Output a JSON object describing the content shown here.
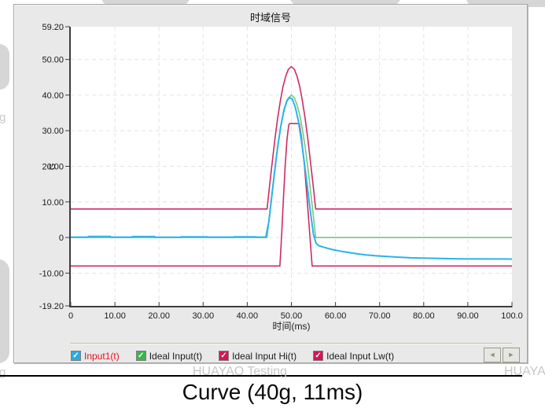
{
  "panel": {
    "title": "时域信号"
  },
  "caption": "Curve (40g, 11ms)",
  "watermarks": {
    "center": "HUAYAO Testing",
    "right": "HUAYAO",
    "left_letter_mid": "g",
    "left_letter_bottom": "g"
  },
  "legend": {
    "check_glyph": "✓",
    "scroll_left_icon": "◄",
    "scroll_right_icon": "►",
    "items": [
      {
        "label": "Input1(t)",
        "box_color": "#29abe2",
        "label_color": "#e8101c"
      },
      {
        "label": "Ideal Input(t)",
        "box_color": "#3bb54a",
        "label_color": "#1a1a1a"
      },
      {
        "label": "Ideal Input Hi(t)",
        "box_color": "#d4145a",
        "label_color": "#1a1a1a"
      },
      {
        "label": "Ideal Input Lw(t)",
        "box_color": "#d4145a",
        "label_color": "#1a1a1a"
      }
    ]
  },
  "chart_data": {
    "type": "line",
    "title": "时域信号",
    "xlabel": "时间(ms)",
    "ylabel": "G",
    "xlim": [
      0,
      100
    ],
    "ylim": [
      -19.2,
      59.2
    ],
    "grid": true,
    "grid_x": [
      10,
      20,
      30,
      40,
      50,
      60,
      70,
      80,
      90
    ],
    "grid_y": [
      -10,
      0,
      10,
      20,
      30,
      40,
      50
    ],
    "x_ticks": [
      {
        "v": 0,
        "label": "0"
      },
      {
        "v": 10,
        "label": "10.00"
      },
      {
        "v": 20,
        "label": "20.00"
      },
      {
        "v": 30,
        "label": "30.00"
      },
      {
        "v": 40,
        "label": "40.00"
      },
      {
        "v": 50,
        "label": "50.00"
      },
      {
        "v": 60,
        "label": "60.00"
      },
      {
        "v": 70,
        "label": "70.00"
      },
      {
        "v": 80,
        "label": "80.00"
      },
      {
        "v": 90,
        "label": "90.00"
      },
      {
        "v": 100,
        "label": "100.0"
      }
    ],
    "y_ticks": [
      {
        "v": 59.2,
        "label": "59.20"
      },
      {
        "v": 50,
        "label": "50.00"
      },
      {
        "v": 40,
        "label": "40.00"
      },
      {
        "v": 30,
        "label": "30.00"
      },
      {
        "v": 20,
        "label": "20.00"
      },
      {
        "v": 10,
        "label": "10.00"
      },
      {
        "v": 0,
        "label": "0"
      },
      {
        "v": -10,
        "label": "-10.00"
      },
      {
        "v": -19.2,
        "label": "-19.20"
      }
    ],
    "draw_order": [
      2,
      3,
      1,
      0
    ],
    "series": [
      {
        "name": "Input1(t)",
        "color": "#2ab4e8",
        "width": 2,
        "points": [
          [
            0,
            0.1
          ],
          [
            4,
            0.1
          ],
          [
            4,
            0.3
          ],
          [
            9,
            0.3
          ],
          [
            9,
            0.1
          ],
          [
            14,
            0.1
          ],
          [
            14,
            0.25
          ],
          [
            19,
            0.25
          ],
          [
            19,
            0.05
          ],
          [
            25,
            0.05
          ],
          [
            25,
            0.2
          ],
          [
            31,
            0.2
          ],
          [
            31,
            0.1
          ],
          [
            37,
            0.1
          ],
          [
            37,
            0.2
          ],
          [
            42,
            0.2
          ],
          [
            42,
            0.1
          ],
          [
            44.2,
            0.1
          ],
          [
            44.9,
            4.5
          ],
          [
            45.5,
            11
          ],
          [
            46.2,
            18.5
          ],
          [
            46.9,
            25.5
          ],
          [
            47.6,
            31.2
          ],
          [
            48.3,
            35.8
          ],
          [
            49,
            38.5
          ],
          [
            49.6,
            39.3
          ],
          [
            50.2,
            38.9
          ],
          [
            50.9,
            36.6
          ],
          [
            51.6,
            32.6
          ],
          [
            52.3,
            27
          ],
          [
            53,
            20.4
          ],
          [
            53.7,
            13.4
          ],
          [
            54.4,
            6.4
          ],
          [
            55,
            0.8
          ],
          [
            55.6,
            -1.6
          ],
          [
            56.2,
            -2.3
          ],
          [
            57.5,
            -2.8
          ],
          [
            59,
            -3.3
          ],
          [
            61,
            -3.8
          ],
          [
            63,
            -4.2
          ],
          [
            65,
            -4.6
          ],
          [
            67,
            -4.9
          ],
          [
            69,
            -5.1
          ],
          [
            71.5,
            -5.3
          ],
          [
            74,
            -5.5
          ],
          [
            77,
            -5.7
          ],
          [
            80,
            -5.8
          ],
          [
            84,
            -5.9
          ],
          [
            88,
            -6
          ],
          [
            100,
            -6.05
          ]
        ]
      },
      {
        "name": "Ideal Input(t)",
        "color": "#72c888",
        "width": 1.6,
        "points": [
          [
            0,
            0
          ],
          [
            44.5,
            0
          ],
          [
            45.1,
            7
          ],
          [
            45.7,
            13.6
          ],
          [
            46.3,
            19.9
          ],
          [
            46.9,
            25.6
          ],
          [
            47.5,
            30.4
          ],
          [
            48.1,
            34.3
          ],
          [
            48.7,
            37.2
          ],
          [
            49.3,
            39.2
          ],
          [
            50,
            40
          ],
          [
            50.7,
            39.2
          ],
          [
            51.3,
            37.2
          ],
          [
            51.9,
            34.3
          ],
          [
            52.5,
            30.4
          ],
          [
            53.1,
            25.6
          ],
          [
            53.7,
            19.9
          ],
          [
            54.3,
            13.6
          ],
          [
            54.9,
            7
          ],
          [
            55.5,
            0
          ],
          [
            100,
            0
          ]
        ]
      },
      {
        "name": "Ideal Input Hi(t)",
        "color": "#cf2a63",
        "width": 1.6,
        "points": [
          [
            0,
            8
          ],
          [
            44.5,
            8
          ],
          [
            45.1,
            15
          ],
          [
            45.7,
            21.6
          ],
          [
            46.3,
            27.9
          ],
          [
            46.9,
            33.6
          ],
          [
            47.5,
            38.4
          ],
          [
            48.1,
            42.3
          ],
          [
            48.7,
            45.2
          ],
          [
            49.3,
            47.2
          ],
          [
            50,
            48
          ],
          [
            50.7,
            47.2
          ],
          [
            51.3,
            45.2
          ],
          [
            51.9,
            42.3
          ],
          [
            52.5,
            38.4
          ],
          [
            53.1,
            33.6
          ],
          [
            53.7,
            27.9
          ],
          [
            54.3,
            21.6
          ],
          [
            54.9,
            15
          ],
          [
            55.5,
            8
          ],
          [
            100,
            8
          ]
        ]
      },
      {
        "name": "Ideal Input Lw(t)",
        "color": "#cf2a63",
        "width": 1.6,
        "points": [
          [
            0,
            -8
          ],
          [
            47.4,
            -8
          ],
          [
            47.8,
            1
          ],
          [
            48.2,
            11
          ],
          [
            48.6,
            20
          ],
          [
            49,
            27.5
          ],
          [
            49.4,
            31.5
          ],
          [
            49.6,
            32
          ],
          [
            51.8,
            32
          ],
          [
            52.3,
            28
          ],
          [
            52.9,
            21
          ],
          [
            53.5,
            12
          ],
          [
            54.1,
            2
          ],
          [
            54.7,
            -8
          ],
          [
            100,
            -8
          ]
        ]
      }
    ]
  }
}
